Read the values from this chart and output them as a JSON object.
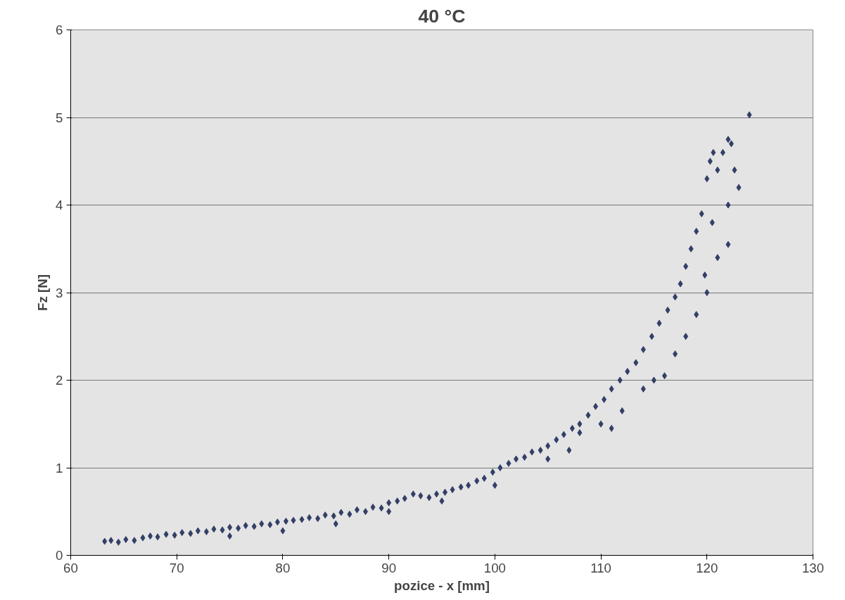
{
  "chart_data": {
    "type": "scatter",
    "title": "40 °C",
    "xlabel": "pozice - x [mm]",
    "ylabel": "Fz [N]",
    "x": [
      63.2,
      63.8,
      64.5,
      65.2,
      66,
      66.8,
      67.5,
      68.2,
      69,
      69.8,
      70.5,
      71.3,
      72,
      72.8,
      73.5,
      74.3,
      75,
      75.8,
      76.5,
      77.3,
      78,
      78.8,
      79.5,
      80.3,
      81,
      81.8,
      82.5,
      83.3,
      84,
      84.8,
      85.5,
      86.3,
      87,
      87.8,
      88.5,
      89.3,
      90,
      90.8,
      91.5,
      92.3,
      93,
      93.8,
      94.5,
      95.3,
      96,
      96.8,
      97.5,
      98.3,
      99,
      99.8,
      100.5,
      101.3,
      102,
      102.8,
      103.5,
      104.3,
      105,
      105.8,
      106.5,
      107.3,
      108,
      108.8,
      109.5,
      110.3,
      111,
      111.8,
      112.5,
      113.3,
      114,
      114.8,
      115.5,
      116.3,
      117,
      117.5,
      118,
      118.5,
      119,
      119.5,
      120,
      120.3,
      120.6,
      121,
      121.5,
      122,
      122.3,
      122.6,
      123,
      124,
      75,
      80,
      85,
      90,
      95,
      100,
      105,
      108,
      110,
      112,
      114,
      116,
      117,
      118,
      119,
      120,
      121,
      122,
      107,
      111,
      115,
      119.8,
      120.5,
      122
    ],
    "values": [
      0.16,
      0.17,
      0.15,
      0.18,
      0.17,
      0.2,
      0.22,
      0.21,
      0.24,
      0.23,
      0.26,
      0.25,
      0.28,
      0.27,
      0.3,
      0.29,
      0.32,
      0.31,
      0.34,
      0.33,
      0.36,
      0.35,
      0.38,
      0.39,
      0.4,
      0.41,
      0.43,
      0.42,
      0.46,
      0.45,
      0.49,
      0.47,
      0.52,
      0.5,
      0.55,
      0.54,
      0.6,
      0.62,
      0.65,
      0.7,
      0.68,
      0.66,
      0.7,
      0.72,
      0.75,
      0.78,
      0.8,
      0.85,
      0.88,
      0.95,
      1.0,
      1.05,
      1.1,
      1.12,
      1.18,
      1.2,
      1.25,
      1.32,
      1.38,
      1.45,
      1.5,
      1.6,
      1.7,
      1.78,
      1.9,
      2.0,
      2.1,
      2.2,
      2.35,
      2.5,
      2.65,
      2.8,
      2.95,
      3.1,
      3.3,
      3.5,
      3.7,
      3.9,
      4.3,
      4.5,
      4.6,
      4.4,
      4.6,
      4.75,
      4.7,
      4.4,
      4.2,
      5.03,
      0.22,
      0.28,
      0.36,
      0.5,
      0.62,
      0.8,
      1.1,
      1.4,
      1.5,
      1.65,
      1.9,
      2.05,
      2.3,
      2.5,
      2.75,
      3.0,
      3.4,
      3.55,
      1.2,
      1.45,
      2.0,
      3.2,
      3.8,
      4.0
    ],
    "xlim": [
      60,
      130
    ],
    "xticks": [
      60,
      70,
      80,
      90,
      100,
      110,
      120,
      130
    ],
    "ylim": [
      0,
      6
    ],
    "yticks": [
      0,
      1,
      2,
      3,
      4,
      5,
      6
    ],
    "color": "#333f66",
    "marker": "diamond",
    "grid": "y"
  }
}
